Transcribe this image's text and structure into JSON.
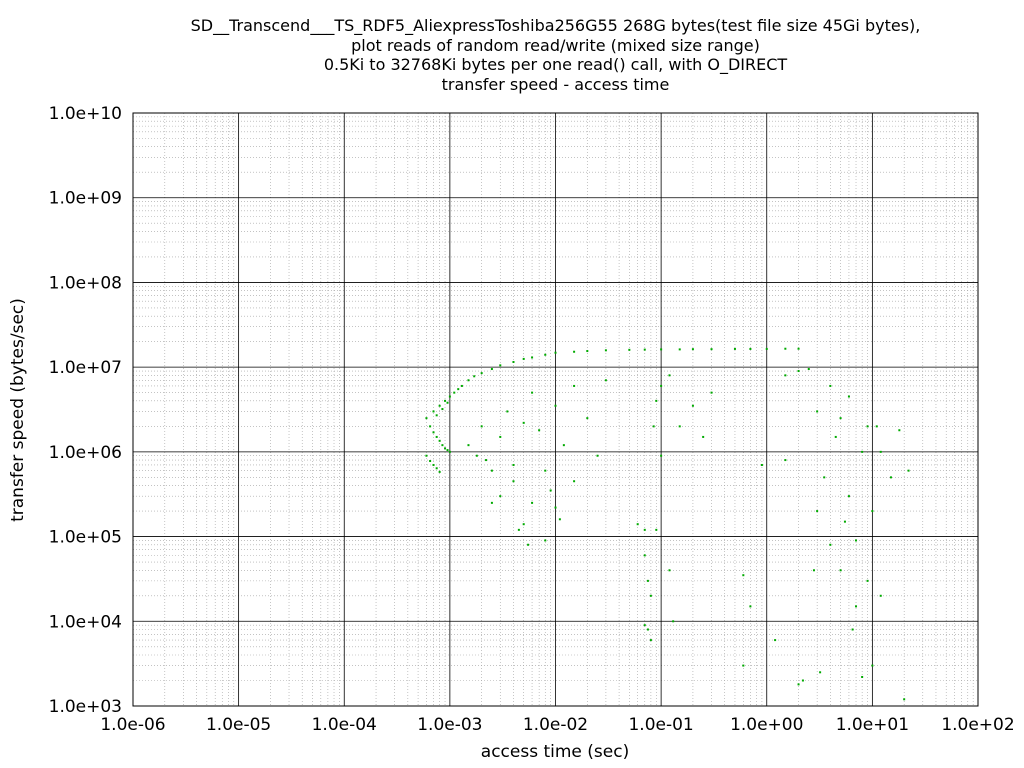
{
  "chart_data": {
    "type": "scatter",
    "title_lines": [
      "SD__Transcend___TS_RDF5_AliexpressToshiba256G55 268G bytes(test file size 45Gi bytes),",
      "plot reads of random read/write (mixed size range)",
      "0.5Ki to 32768Ki bytes per one read() call, with O_DIRECT",
      "transfer speed - access time"
    ],
    "xlabel": "access time (sec)",
    "ylabel": "transfer speed (bytes/sec)",
    "x_scale": "log",
    "y_scale": "log",
    "xlim": [
      1e-06,
      100
    ],
    "ylim": [
      1000,
      10000000000.0
    ],
    "x_tick_labels": [
      "1.0e-06",
      "1.0e-05",
      "1.0e-04",
      "1.0e-03",
      "1.0e-02",
      "1.0e-01",
      "1.0e+00",
      "1.0e+01",
      "1.0e+02"
    ],
    "y_tick_labels": [
      "1.0e+03",
      "1.0e+04",
      "1.0e+05",
      "1.0e+06",
      "1.0e+07",
      "1.0e+08",
      "1.0e+09",
      "1.0e+10"
    ],
    "grid": true,
    "point_color": "#00aa00",
    "series": [
      {
        "values": [
          [
            0.0006,
            900000
          ],
          [
            0.00065,
            780000
          ],
          [
            0.0007,
            700000
          ],
          [
            0.00075,
            640000
          ],
          [
            0.0008,
            580000
          ],
          [
            0.0006,
            2500000
          ],
          [
            0.00065,
            2000000
          ],
          [
            0.0007,
            1700000
          ],
          [
            0.00075,
            1500000
          ],
          [
            0.0008,
            1350000
          ],
          [
            0.00085,
            1200000
          ],
          [
            0.0009,
            1100000
          ],
          [
            0.00095,
            1050000
          ],
          [
            0.001,
            1000000
          ],
          [
            0.0007,
            3000000
          ],
          [
            0.00075,
            2700000
          ],
          [
            0.0008,
            3500000
          ],
          [
            0.00085,
            3200000
          ],
          [
            0.0009,
            4000000
          ],
          [
            0.00095,
            3800000
          ],
          [
            0.001,
            4500000
          ],
          [
            0.0011,
            5000000
          ],
          [
            0.0012,
            5500000
          ],
          [
            0.0013,
            6000000
          ],
          [
            0.0015,
            7000000
          ],
          [
            0.0017,
            7800000
          ],
          [
            0.002,
            8500000
          ],
          [
            0.0025,
            9500000
          ],
          [
            0.003,
            10500000
          ],
          [
            0.004,
            11500000
          ],
          [
            0.005,
            12500000
          ],
          [
            0.006,
            13000000
          ],
          [
            0.008,
            14000000
          ],
          [
            0.01,
            14800000
          ],
          [
            0.015,
            15200000
          ],
          [
            0.02,
            15500000
          ],
          [
            0.03,
            15800000
          ],
          [
            0.05,
            16000000
          ],
          [
            0.07,
            16100000
          ],
          [
            0.1,
            16200000
          ],
          [
            0.15,
            16200000
          ],
          [
            0.2,
            16300000
          ],
          [
            0.3,
            16300000
          ],
          [
            0.5,
            16400000
          ],
          [
            0.7,
            16400000
          ],
          [
            1.0,
            16400000
          ],
          [
            1.5,
            16500000
          ],
          [
            2.0,
            16500000
          ],
          [
            0.0015,
            1200000
          ],
          [
            0.0018,
            900000
          ],
          [
            0.002,
            2000000
          ],
          [
            0.0022,
            800000
          ],
          [
            0.0025,
            600000
          ],
          [
            0.003,
            1500000
          ],
          [
            0.003,
            300000
          ],
          [
            0.0035,
            3000000
          ],
          [
            0.004,
            700000
          ],
          [
            0.004,
            450000
          ],
          [
            0.005,
            2200000
          ],
          [
            0.005,
            140000
          ],
          [
            0.006,
            5000000
          ],
          [
            0.006,
            250000
          ],
          [
            0.007,
            1800000
          ],
          [
            0.008,
            600000
          ],
          [
            0.008,
            90000
          ],
          [
            0.01,
            3500000
          ],
          [
            0.01,
            220000
          ],
          [
            0.012,
            1200000
          ],
          [
            0.015,
            6000000
          ],
          [
            0.015,
            450000
          ],
          [
            0.02,
            2500000
          ],
          [
            0.025,
            900000
          ],
          [
            0.03,
            7000000
          ],
          [
            0.0025,
            250000
          ],
          [
            0.0045,
            120000
          ],
          [
            0.0055,
            80000
          ],
          [
            0.009,
            350000
          ],
          [
            0.011,
            160000
          ],
          [
            0.07,
            120000
          ],
          [
            0.07,
            60000
          ],
          [
            0.075,
            30000
          ],
          [
            0.08,
            20000
          ],
          [
            0.075,
            8000
          ],
          [
            0.08,
            6000
          ],
          [
            0.085,
            2000000
          ],
          [
            0.09,
            4000000
          ],
          [
            0.1,
            6000000
          ],
          [
            0.12,
            8000000
          ],
          [
            0.09,
            120000
          ],
          [
            0.1,
            900000
          ],
          [
            0.12,
            40000
          ],
          [
            0.13,
            10000
          ],
          [
            0.15,
            2000000
          ],
          [
            0.2,
            3500000
          ],
          [
            0.25,
            1500000
          ],
          [
            0.3,
            5000000
          ],
          [
            0.07,
            9000
          ],
          [
            0.06,
            140000
          ],
          [
            0.6,
            35000
          ],
          [
            0.7,
            15000
          ],
          [
            0.6,
            3000
          ],
          [
            0.9,
            700000
          ],
          [
            1.2,
            6000
          ],
          [
            1.5,
            800000
          ],
          [
            2,
            1800
          ],
          [
            2,
            9000000
          ],
          [
            2.5,
            9500000
          ],
          [
            3,
            3000000
          ],
          [
            3,
            200000
          ],
          [
            3.5,
            500000
          ],
          [
            4,
            80000
          ],
          [
            4,
            6000000
          ],
          [
            5,
            2500000
          ],
          [
            5,
            40000
          ],
          [
            6,
            4500000
          ],
          [
            6,
            300000
          ],
          [
            7,
            15000
          ],
          [
            7,
            90000
          ],
          [
            8,
            1000000
          ],
          [
            9,
            2000000
          ],
          [
            10,
            3000
          ],
          [
            10,
            200000
          ],
          [
            12,
            1000000
          ],
          [
            12,
            20000
          ],
          [
            15,
            500000
          ],
          [
            18,
            1800000
          ],
          [
            20,
            1200
          ],
          [
            22,
            600000
          ],
          [
            1.5,
            8000000
          ],
          [
            2.2,
            2000
          ],
          [
            2.8,
            40000
          ],
          [
            3.2,
            2500
          ],
          [
            4.5,
            1500000
          ],
          [
            5.5,
            150000
          ],
          [
            6.5,
            8000
          ],
          [
            8,
            2200
          ],
          [
            9,
            30000
          ],
          [
            11,
            2000000
          ]
        ]
      }
    ]
  }
}
